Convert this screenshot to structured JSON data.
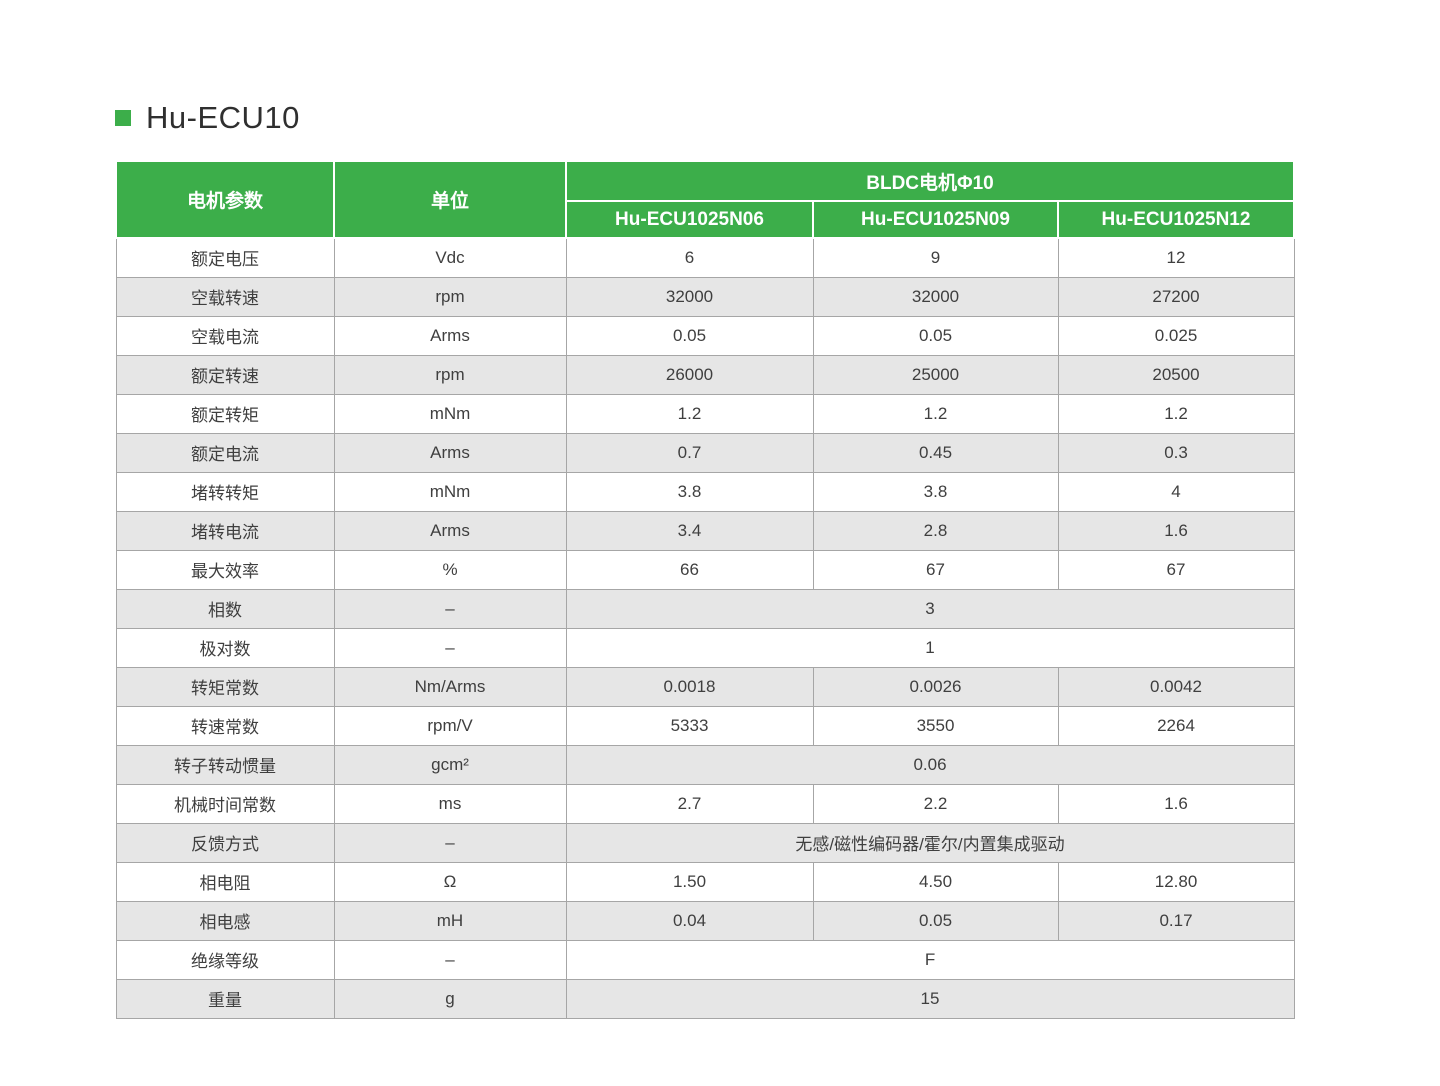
{
  "theme": {
    "accent_green": "#3cae4a",
    "stripe_gray": "#e6e6e6",
    "border_gray": "#a6a6a6",
    "text_gray": "#3f3f3f"
  },
  "page": {
    "title": "Hu-ECU10"
  },
  "table": {
    "header": {
      "param": "电机参数",
      "unit": "单位",
      "group": "BLDC电机Φ10",
      "models": [
        "Hu-ECU1025N06",
        "Hu-ECU1025N09",
        "Hu-ECU1025N12"
      ]
    },
    "rows": [
      {
        "param": "额定电压",
        "unit": "Vdc",
        "values": [
          "6",
          "9",
          "12"
        ]
      },
      {
        "param": "空载转速",
        "unit": "rpm",
        "values": [
          "32000",
          "32000",
          "27200"
        ]
      },
      {
        "param": "空载电流",
        "unit": "Arms",
        "values": [
          "0.05",
          "0.05",
          "0.025"
        ]
      },
      {
        "param": "额定转速",
        "unit": "rpm",
        "values": [
          "26000",
          "25000",
          "20500"
        ]
      },
      {
        "param": "额定转矩",
        "unit": "mNm",
        "values": [
          "1.2",
          "1.2",
          "1.2"
        ]
      },
      {
        "param": "额定电流",
        "unit": "Arms",
        "values": [
          "0.7",
          "0.45",
          "0.3"
        ]
      },
      {
        "param": "堵转转矩",
        "unit": "mNm",
        "values": [
          "3.8",
          "3.8",
          "4"
        ]
      },
      {
        "param": "堵转电流",
        "unit": "Arms",
        "values": [
          "3.4",
          "2.8",
          "1.6"
        ]
      },
      {
        "param": "最大效率",
        "unit": "%",
        "values": [
          "66",
          "67",
          "67"
        ]
      },
      {
        "param": "相数",
        "unit": "–",
        "merged": "3"
      },
      {
        "param": "极对数",
        "unit": "–",
        "merged": "1"
      },
      {
        "param": "转矩常数",
        "unit": "Nm/Arms",
        "values": [
          "0.0018",
          "0.0026",
          "0.0042"
        ]
      },
      {
        "param": "转速常数",
        "unit": "rpm/V",
        "values": [
          "5333",
          "3550",
          "2264"
        ]
      },
      {
        "param": "转子转动惯量",
        "unit": "gcm²",
        "merged": "0.06"
      },
      {
        "param": "机械时间常数",
        "unit": "ms",
        "values": [
          "2.7",
          "2.2",
          "1.6"
        ]
      },
      {
        "param": "反馈方式",
        "unit": "–",
        "merged": "无感/磁性编码器/霍尔/内置集成驱动"
      },
      {
        "param": "相电阻",
        "unit": "Ω",
        "values": [
          "1.50",
          "4.50",
          "12.80"
        ]
      },
      {
        "param": "相电感",
        "unit": "mH",
        "values": [
          "0.04",
          "0.05",
          "0.17"
        ]
      },
      {
        "param": "绝缘等级",
        "unit": "–",
        "merged": "F"
      },
      {
        "param": "重量",
        "unit": "g",
        "merged": "15"
      }
    ]
  }
}
